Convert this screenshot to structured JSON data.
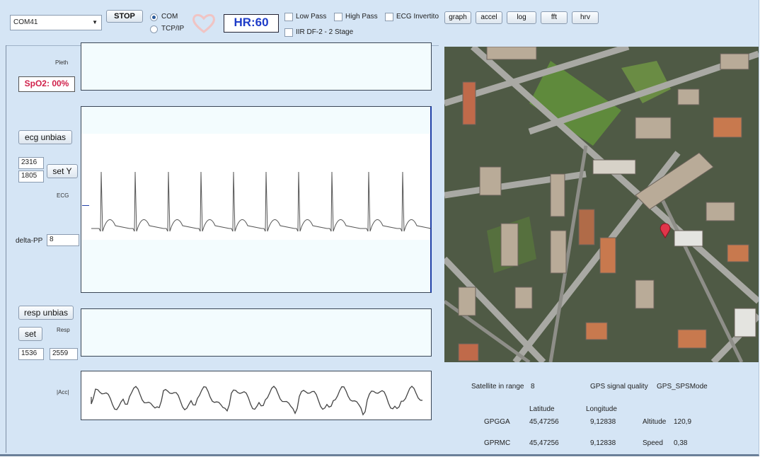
{
  "toolbar": {
    "port": "COM41",
    "stop_button": "STOP",
    "connection": [
      "COM",
      "TCP/IP"
    ],
    "heart_rate": "HR:60",
    "filters": [
      "Low Pass",
      "High Pass",
      "ECG Invertito",
      "IIR DF-2 - 2 Stage"
    ],
    "buttons": [
      "graph",
      "accel",
      "log",
      "fft",
      "hrv"
    ]
  },
  "panels": {
    "plethysmograph": {
      "label": "Pleth",
      "spo2": "SpO2: 00%"
    },
    "ecg": {
      "unbias_button": "ecg unbias",
      "y_max": "2316",
      "y_min": "1805",
      "set_button": "set Y",
      "label": "ECG",
      "delta_label": "delta-PP",
      "delta_value": "8"
    },
    "respiration": {
      "unbias_button": "resp unbias",
      "set_button": "set",
      "label": "Resp",
      "min": "1536",
      "max": "2559"
    },
    "acceleration": {
      "label": "|Acc|"
    }
  },
  "gps": {
    "satellites_label": "Satellite in range",
    "satellites": "8",
    "quality_label": "GPS signal quality",
    "quality": "GPS_SPSMode",
    "latitude_header": "Latitude",
    "longitude_header": "Longitude",
    "rows": [
      {
        "sentence": "GPGGA",
        "latitude": "45,47256",
        "longitude": "9,12838",
        "extra_label": "Altitude",
        "extra_value": "120,9"
      },
      {
        "sentence": "GPRMC",
        "latitude": "45,47256",
        "longitude": "9,12838",
        "extra_label": "Speed",
        "extra_value": "0,38"
      }
    ]
  }
}
